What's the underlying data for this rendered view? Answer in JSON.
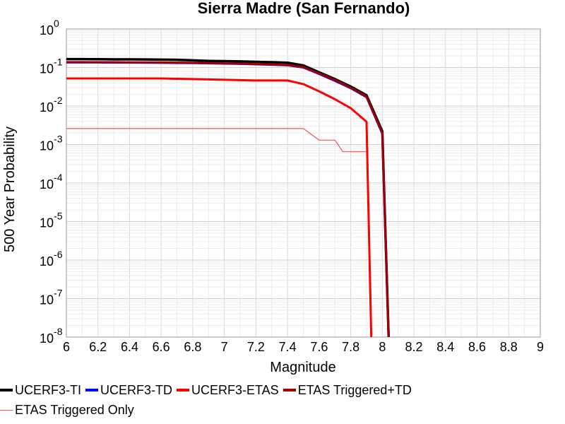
{
  "chart_data": {
    "type": "line",
    "title": "Sierra Madre (San Fernando)",
    "xlabel": "Magnitude",
    "ylabel": "500 Year Probability",
    "xlim": [
      6,
      9
    ],
    "ylim": [
      1e-08,
      1
    ],
    "yscale": "log",
    "grid": true,
    "legend_position": "bottom",
    "x_ticks": [
      "6",
      "6.2",
      "6.4",
      "6.6",
      "6.8",
      "7",
      "7.2",
      "7.4",
      "7.6",
      "7.8",
      "8",
      "8.2",
      "8.4",
      "8.6",
      "8.8",
      "9"
    ],
    "y_ticks": [
      {
        "base": "10",
        "exp": "0"
      },
      {
        "base": "10",
        "exp": "-1"
      },
      {
        "base": "10",
        "exp": "-2"
      },
      {
        "base": "10",
        "exp": "-3"
      },
      {
        "base": "10",
        "exp": "-4"
      },
      {
        "base": "10",
        "exp": "-5"
      },
      {
        "base": "10",
        "exp": "-6"
      },
      {
        "base": "10",
        "exp": "-7"
      },
      {
        "base": "10",
        "exp": "-8"
      }
    ],
    "series": [
      {
        "name": "UCERF3-TI",
        "color": "#000000",
        "width": 3.5,
        "x": [
          6.0,
          6.1,
          6.2,
          6.3,
          6.4,
          6.5,
          6.6,
          6.7,
          6.8,
          6.9,
          7.0,
          7.1,
          7.2,
          7.3,
          7.4,
          7.5,
          7.6,
          7.7,
          7.8,
          7.9,
          8.0,
          8.04
        ],
        "y": [
          0.165,
          0.165,
          0.164,
          0.163,
          0.163,
          0.162,
          0.16,
          0.158,
          0.153,
          0.148,
          0.146,
          0.144,
          0.14,
          0.137,
          0.133,
          0.113,
          0.075,
          0.05,
          0.032,
          0.019,
          0.0022,
          1e-08
        ]
      },
      {
        "name": "UCERF3-TD",
        "color": "#0000ff",
        "width": 3,
        "x": [
          6.0,
          6.1,
          6.2,
          6.3,
          6.4,
          6.5,
          6.6,
          6.7,
          6.8,
          6.9,
          7.0,
          7.1,
          7.2,
          7.3,
          7.4,
          7.5,
          7.6,
          7.7,
          7.8,
          7.9,
          8.0,
          8.04
        ],
        "y": [
          0.135,
          0.135,
          0.135,
          0.134,
          0.134,
          0.133,
          0.132,
          0.131,
          0.13,
          0.128,
          0.126,
          0.124,
          0.121,
          0.118,
          0.114,
          0.1,
          0.068,
          0.045,
          0.029,
          0.017,
          0.0019,
          1e-08
        ]
      },
      {
        "name": "UCERF3-ETAS",
        "color": "#ff0000",
        "width": 3,
        "x": [
          6.0,
          6.1,
          6.2,
          6.3,
          6.4,
          6.5,
          6.6,
          6.7,
          6.8,
          6.9,
          7.0,
          7.1,
          7.2,
          7.3,
          7.4,
          7.5,
          7.6,
          7.7,
          7.8,
          7.9,
          7.93
        ],
        "y": [
          0.052,
          0.052,
          0.052,
          0.052,
          0.052,
          0.052,
          0.052,
          0.051,
          0.05,
          0.049,
          0.048,
          0.047,
          0.046,
          0.046,
          0.046,
          0.037,
          0.024,
          0.015,
          0.0088,
          0.0039,
          1e-08
        ]
      },
      {
        "name": "ETAS Triggered+TD",
        "color": "#a00000",
        "width": 3,
        "x": [
          6.0,
          6.1,
          6.2,
          6.3,
          6.4,
          6.5,
          6.6,
          6.7,
          6.8,
          6.9,
          7.0,
          7.1,
          7.2,
          7.3,
          7.4,
          7.5,
          7.6,
          7.7,
          7.8,
          7.9,
          8.0,
          8.04
        ],
        "y": [
          0.138,
          0.138,
          0.137,
          0.137,
          0.136,
          0.136,
          0.135,
          0.134,
          0.132,
          0.13,
          0.128,
          0.126,
          0.123,
          0.12,
          0.116,
          0.102,
          0.07,
          0.047,
          0.03,
          0.0175,
          0.002,
          1e-08
        ]
      },
      {
        "name": "ETAS Triggered Only",
        "color": "#ff5050",
        "width": 1.2,
        "x": [
          6.0,
          6.2,
          6.4,
          6.6,
          6.8,
          7.0,
          7.2,
          7.4,
          7.5,
          7.6,
          7.7,
          7.75,
          7.8,
          7.9
        ],
        "y": [
          0.0026,
          0.0026,
          0.0026,
          0.0026,
          0.0026,
          0.0026,
          0.0026,
          0.0026,
          0.0026,
          0.0013,
          0.0013,
          0.00065,
          0.00065,
          0.00065
        ]
      }
    ]
  }
}
